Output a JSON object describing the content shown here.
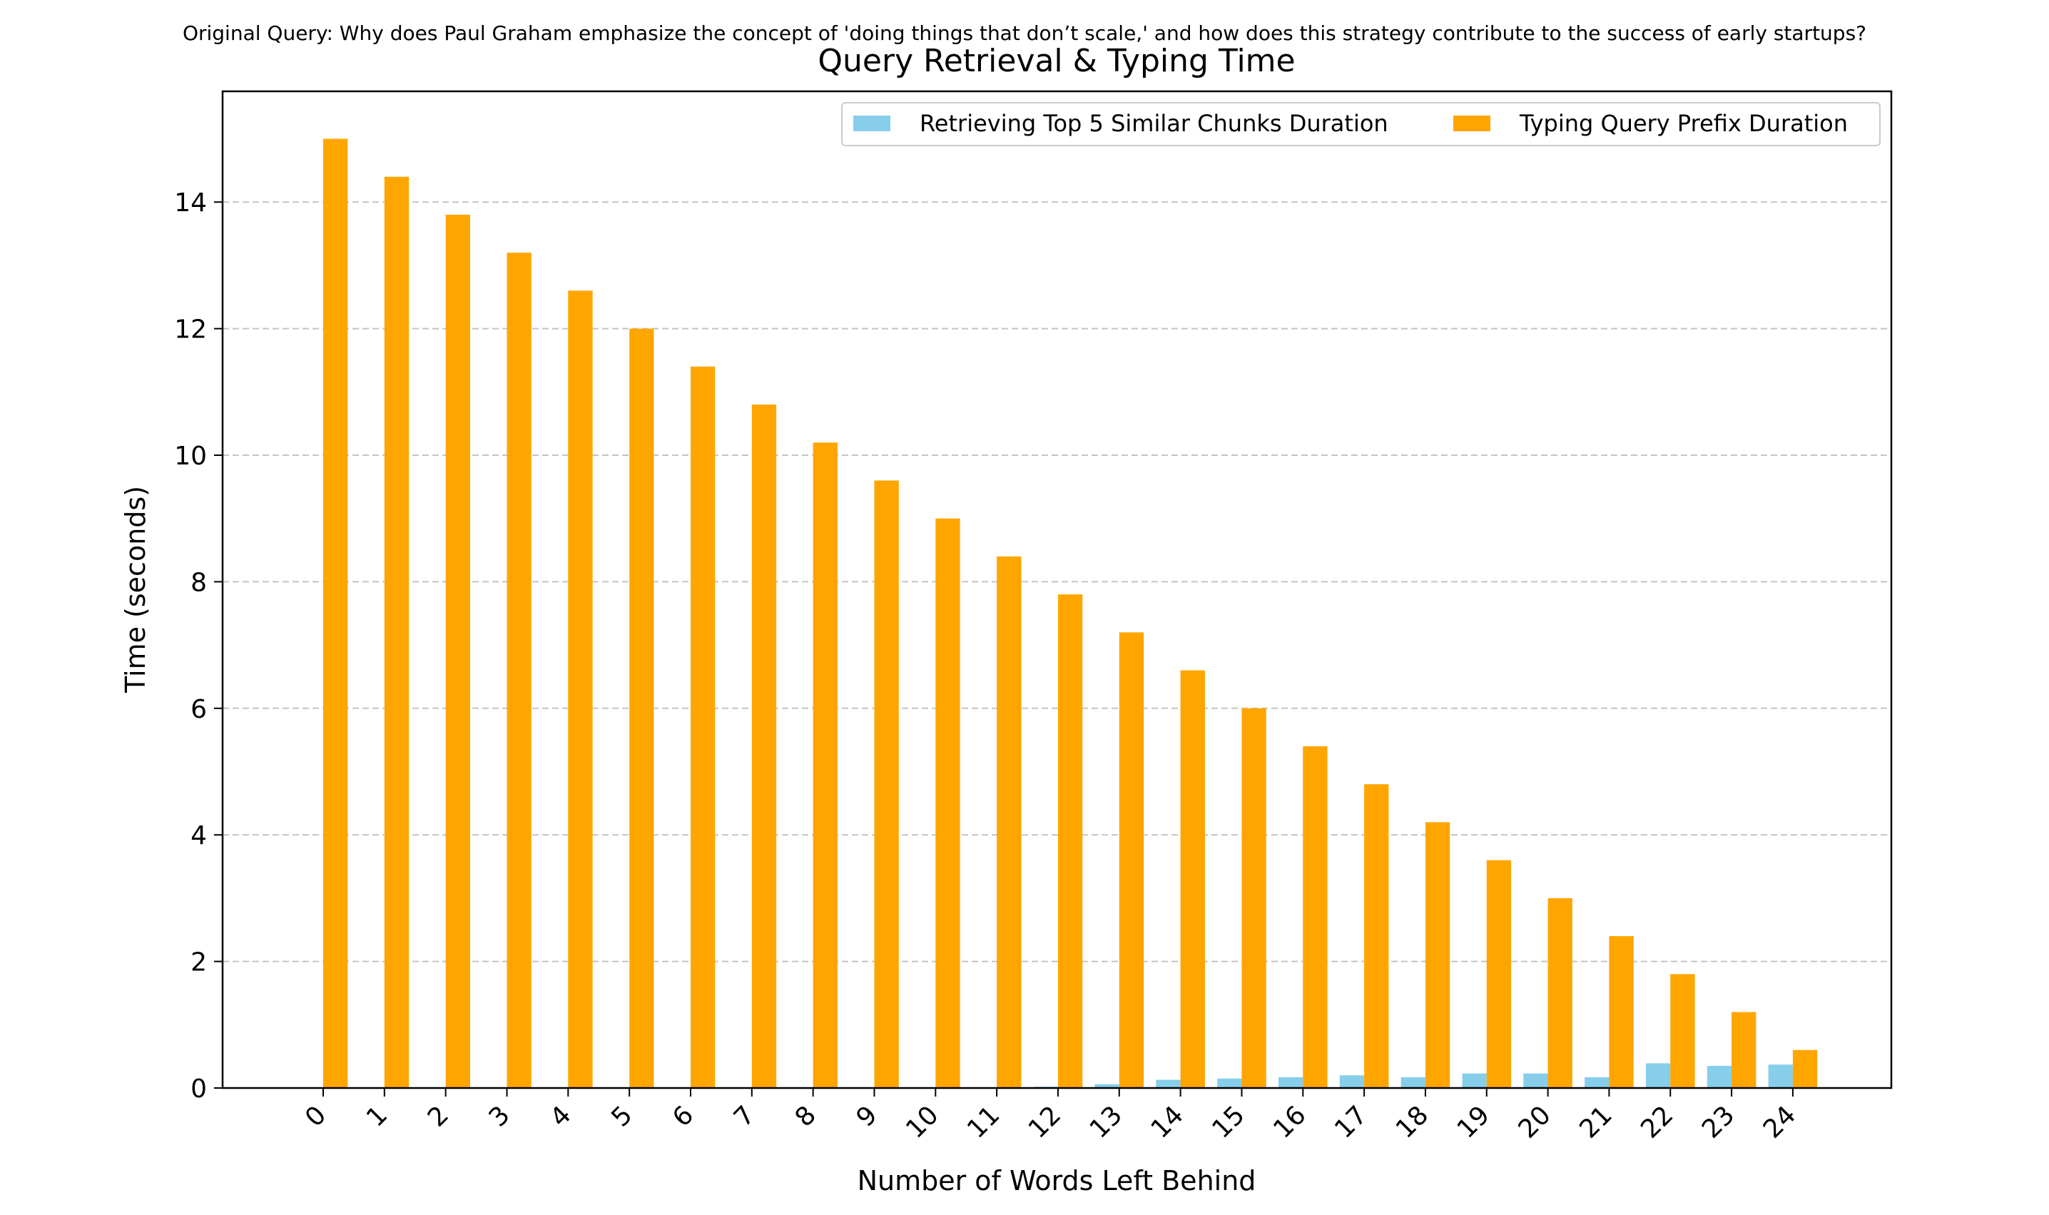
{
  "suptitle": "Original Query: Why does Paul Graham emphasize the concept of 'doing things that don’t scale,' and how does this strategy contribute to the success of early startups?",
  "chart_data": {
    "type": "bar",
    "title": "Query Retrieval & Typing Time",
    "xlabel": "Number of Words Left Behind",
    "ylabel": "Time (seconds)",
    "categories": [
      "0",
      "1",
      "2",
      "3",
      "4",
      "5",
      "6",
      "7",
      "8",
      "9",
      "10",
      "11",
      "12",
      "13",
      "14",
      "15",
      "16",
      "17",
      "18",
      "19",
      "20",
      "21",
      "22",
      "23",
      "24"
    ],
    "ylim": [
      0,
      15.75
    ],
    "yticks": [
      0,
      2,
      4,
      6,
      8,
      10,
      12,
      14
    ],
    "grid": "y-dashed",
    "legend_position": "top-right",
    "series": [
      {
        "name": "Retrieving Top 5 Similar Chunks Duration",
        "color": "#87CEEB",
        "values": [
          0.0,
          0.0,
          0.0,
          0.0,
          0.0,
          0.0,
          0.0,
          0.0,
          0.0,
          0.0,
          0.0,
          0.0,
          0.02,
          0.06,
          0.13,
          0.15,
          0.17,
          0.2,
          0.17,
          0.23,
          0.23,
          0.17,
          0.39,
          0.35,
          0.37
        ]
      },
      {
        "name": "Typing Query Prefix Duration",
        "color": "#FFA500",
        "values": [
          15.0,
          14.4,
          13.8,
          13.2,
          12.6,
          12.0,
          11.4,
          10.8,
          10.2,
          9.6,
          9.0,
          8.4,
          7.8,
          7.2,
          6.6,
          6.0,
          5.4,
          4.8,
          4.2,
          3.6,
          3.0,
          2.4,
          1.8,
          1.2,
          0.6
        ]
      }
    ]
  }
}
